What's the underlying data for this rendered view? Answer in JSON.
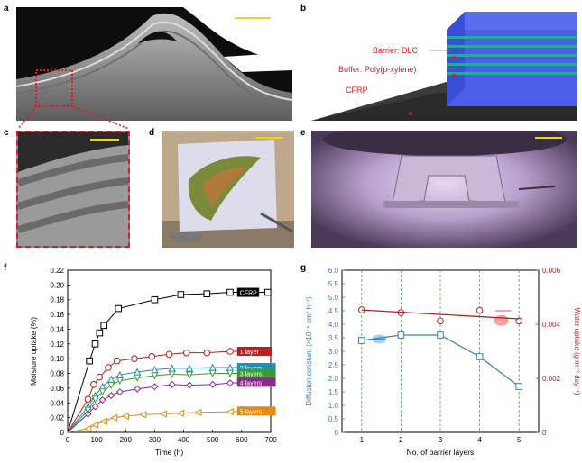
{
  "panels": {
    "a": "a",
    "b": "b",
    "c": "c",
    "d": "d",
    "e": "e",
    "f": "f",
    "g": "g"
  },
  "panel_b": {
    "barrier_label": "Barrier: DLC",
    "buffer_label": "Buffer: Poly(p-xylene)",
    "cfrp_label": "CFRP",
    "colors": {
      "barrier": "#2aa7a0",
      "buffer": "#6a7ff0",
      "substrate": "#4a5ee8",
      "label": "#cc2222"
    }
  },
  "colors": {
    "scale_bar": "#f2d21b",
    "zoom_box": "#d42020"
  },
  "chart_data": [
    {
      "type": "line",
      "panel": "f",
      "xlabel": "Time (h)",
      "ylabel": "Moisture uptake (%)",
      "xlim": [
        0,
        700
      ],
      "ylim": [
        0,
        0.22
      ],
      "xticks": [
        "0",
        "100",
        "200",
        "300",
        "400",
        "500",
        "600",
        "700"
      ],
      "yticks": [
        "0",
        "0.02",
        "0.04",
        "0.06",
        "0.08",
        "0.10",
        "0.12",
        "0.14",
        "0.16",
        "0.18",
        "0.20",
        "0.22"
      ],
      "legend": "inline labels at right end of curves",
      "series": [
        {
          "name": "CFRP",
          "color": "#000000",
          "marker": "square",
          "x": [
            0,
            75,
            95,
            110,
            125,
            175,
            300,
            390,
            480,
            560,
            690
          ],
          "y": [
            0,
            0.097,
            0.12,
            0.135,
            0.145,
            0.168,
            0.18,
            0.187,
            0.188,
            0.19,
            0.19
          ]
        },
        {
          "name": "1 layer",
          "color": "#b52020",
          "marker": "circle",
          "x": [
            0,
            70,
            90,
            110,
            140,
            170,
            230,
            290,
            350,
            410,
            480,
            560,
            690
          ],
          "y": [
            0,
            0.045,
            0.065,
            0.075,
            0.088,
            0.097,
            0.1,
            0.103,
            0.106,
            0.108,
            0.108,
            0.11,
            0.11
          ]
        },
        {
          "name": "2 layers",
          "color": "#1a8fc0",
          "marker": "triangle-up",
          "x": [
            0,
            70,
            95,
            120,
            150,
            180,
            240,
            300,
            360,
            420,
            500,
            560,
            690
          ],
          "y": [
            0,
            0.035,
            0.05,
            0.062,
            0.072,
            0.078,
            0.082,
            0.085,
            0.087,
            0.087,
            0.088,
            0.088,
            0.088
          ]
        },
        {
          "name": "3 layers",
          "color": "#3a9a3a",
          "marker": "triangle-down",
          "x": [
            0,
            70,
            95,
            120,
            150,
            180,
            240,
            300,
            360,
            420,
            500,
            560,
            690
          ],
          "y": [
            0,
            0.03,
            0.045,
            0.055,
            0.064,
            0.07,
            0.074,
            0.077,
            0.079,
            0.078,
            0.08,
            0.08,
            0.08
          ]
        },
        {
          "name": "4 layers",
          "color": "#8a2a8a",
          "marker": "diamond",
          "x": [
            0,
            70,
            95,
            120,
            150,
            180,
            240,
            300,
            360,
            420,
            500,
            560,
            690
          ],
          "y": [
            0,
            0.025,
            0.035,
            0.044,
            0.05,
            0.055,
            0.059,
            0.062,
            0.065,
            0.064,
            0.065,
            0.067,
            0.068
          ]
        },
        {
          "name": "5 layers",
          "color": "#e08a1a",
          "marker": "triangle-left",
          "x": [
            0,
            70,
            95,
            125,
            160,
            200,
            260,
            330,
            390,
            450,
            560,
            690
          ],
          "y": [
            0,
            0.005,
            0.01,
            0.015,
            0.02,
            0.022,
            0.024,
            0.025,
            0.026,
            0.027,
            0.028,
            0.029
          ]
        }
      ]
    },
    {
      "type": "line",
      "panel": "g",
      "xlabel": "No. of barrier layers",
      "ylabel_left": "Diffusion constant (×10⁻⁶ cm² h⁻¹)",
      "ylabel_right": "Water uptake (g m⁻² day⁻¹)",
      "xlim": [
        0.5,
        5.5
      ],
      "ylim_left": [
        0,
        6.0
      ],
      "ylim_right": [
        0,
        0.006
      ],
      "xticks": [
        "1",
        "2",
        "3",
        "4",
        "5"
      ],
      "yticks_left": [
        "0",
        "0.5",
        "1.0",
        "1.5",
        "2.0",
        "2.5",
        "3.0",
        "3.5",
        "4.0",
        "4.5",
        "5.0",
        "5.5",
        "6.0"
      ],
      "yticks_right": [
        "0",
        "0.002",
        "0.004",
        "0.006"
      ],
      "grid": "vertical dashed at x ticks",
      "series": [
        {
          "name": "Diffusion constant",
          "axis": "left",
          "color": "#3a7fb0",
          "marker": "square",
          "x": [
            1,
            2,
            3,
            4,
            5
          ],
          "y": [
            3.4,
            3.6,
            3.6,
            2.8,
            1.7
          ]
        },
        {
          "name": "Water uptake",
          "axis": "right",
          "color": "#b52020",
          "marker": "circle",
          "x": [
            1,
            2,
            3,
            4,
            5
          ],
          "y": [
            0.00453,
            0.00443,
            0.00412,
            0.00451,
            0.00412
          ]
        },
        {
          "name": "Water uptake fit",
          "axis": "right",
          "color": "#b52020",
          "marker": "none",
          "x": [
            1,
            5
          ],
          "y": [
            0.00453,
            0.0042
          ]
        }
      ]
    }
  ]
}
